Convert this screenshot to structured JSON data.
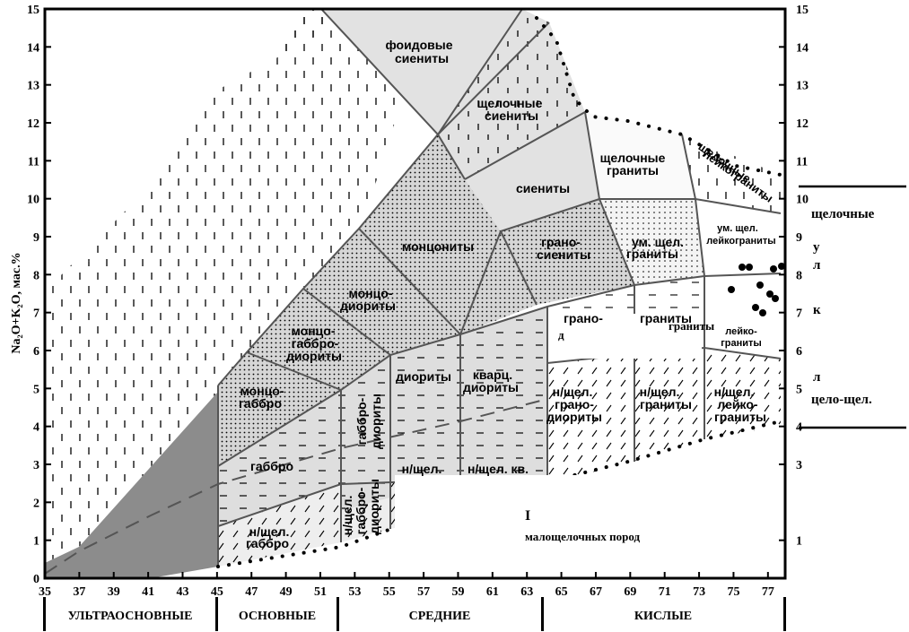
{
  "y_axis_label": "Na₂O+K₂O, мас.%",
  "x_ticks": [
    "35",
    "37",
    "39",
    "41",
    "43",
    "45",
    "47",
    "49",
    "51",
    "53",
    "55",
    "57",
    "59",
    "61",
    "63",
    "65",
    "67",
    "69",
    "71",
    "73",
    "75",
    "77"
  ],
  "y_ticks_left": [
    "0",
    "1",
    "2",
    "3",
    "4",
    "5",
    "6",
    "7",
    "8",
    "9",
    "10",
    "11",
    "12",
    "13",
    "14",
    "15"
  ],
  "y_ticks_right": [
    "1",
    "3",
    "4",
    "5",
    "6",
    "7",
    "8",
    "9",
    "10",
    "11",
    "12",
    "13",
    "14",
    "15"
  ],
  "rock_groups": [
    "УЛЬТРАОСНОВНЫЕ",
    "ОСНОВНЫЕ",
    "СРЕДНИЕ",
    "КИСЛЫЕ"
  ],
  "fields": {
    "foid_syenites": [
      "фоидовые",
      "сиениты"
    ],
    "alk_syenites": [
      "щелочные",
      "сиениты"
    ],
    "alk_granites": [
      "щелочные",
      "граниты"
    ],
    "alk_leucogranites": [
      "щелочные",
      "лейкограниты"
    ],
    "syenites": "сиениты",
    "monzonites": "монцониты",
    "granosyenites": [
      "грано-",
      "сиениты"
    ],
    "mod_alk_granites": [
      "ум. щел.",
      "граниты"
    ],
    "mod_alk_leucogranites": [
      "ум. щел.",
      "лейкограниты"
    ],
    "monzodiorites": [
      "монцо-",
      "диориты"
    ],
    "monzogabbrodiorites": [
      "монцо-",
      "габбро-",
      "диориты"
    ],
    "monzogabbro": [
      "монцо-",
      "габбро"
    ],
    "gabbro": "габбро",
    "gabbrodiorites": [
      "габбро-",
      "диориты"
    ],
    "diorites": "диориты",
    "qz_diorites": [
      "кварц.",
      "диориты"
    ],
    "granodiorites": [
      "грано-",
      "диориты"
    ],
    "granites": "граниты",
    "leucogranites": [
      "лейко-",
      "граниты"
    ],
    "la_gabbro": [
      "н/щел.",
      "габбро"
    ],
    "la_gabbrodiorites": [
      "н/щел.",
      "габбро-",
      "диориты"
    ],
    "la_diorites": "н/щел.",
    "la_qz_diorites": "н/щел. кв.",
    "la_granodiorites": [
      "н/щел.",
      "грано-",
      "диориты"
    ],
    "la_granites": [
      "н/щел.",
      "граниты"
    ],
    "la_leucogranites": [
      "н/щел.",
      "лейко-",
      "граниты"
    ]
  },
  "partial_text": [
    "щелочные",
    "у",
    "л",
    "к",
    "л",
    "цело-щел.",
    "граниты",
    "д"
  ],
  "caption_fragment_1": "I",
  "caption_fragment_2": "малощелочных пород"
}
